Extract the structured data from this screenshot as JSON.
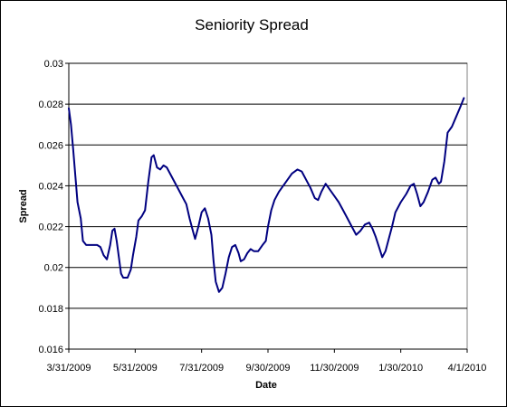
{
  "chart_data": {
    "type": "line",
    "title": "Seniority Spread",
    "xlabel": "Date",
    "ylabel": "Spread",
    "ylim": [
      0.016,
      0.03
    ],
    "y_ticks": [
      "0.016",
      "0.018",
      "0.02",
      "0.022",
      "0.024",
      "0.026",
      "0.028",
      "0.03"
    ],
    "x_ticks": [
      "3/31/2009",
      "5/31/2009",
      "7/31/2009",
      "9/30/2009",
      "11/30/2009",
      "1/30/2010",
      "4/1/2010"
    ],
    "x_range": [
      "3/31/2009",
      "4/1/2010"
    ],
    "grid": "horizontal major gridlines",
    "legend": "none",
    "series": [
      {
        "color": "#000080",
        "points": [
          [
            "3/31/2009",
            0.0278
          ],
          [
            "4/2/2009",
            0.027
          ],
          [
            "4/4/2009",
            0.0258
          ],
          [
            "4/6/2009",
            0.0245
          ],
          [
            "4/8/2009",
            0.0232
          ],
          [
            "4/11/2009",
            0.0224
          ],
          [
            "4/13/2009",
            0.0213
          ],
          [
            "4/16/2009",
            0.0211
          ],
          [
            "4/21/2009",
            0.0211
          ],
          [
            "4/26/2009",
            0.0211
          ],
          [
            "4/29/2009",
            0.021
          ],
          [
            "5/2/2009",
            0.0206
          ],
          [
            "5/5/2009",
            0.0204
          ],
          [
            "5/8/2009",
            0.0211
          ],
          [
            "5/10/2009",
            0.0218
          ],
          [
            "5/12/2009",
            0.0219
          ],
          [
            "5/14/2009",
            0.0213
          ],
          [
            "5/16/2009",
            0.0205
          ],
          [
            "5/18/2009",
            0.0197
          ],
          [
            "5/20/2009",
            0.0195
          ],
          [
            "5/24/2009",
            0.0195
          ],
          [
            "5/27/2009",
            0.0199
          ],
          [
            "5/29/2009",
            0.0206
          ],
          [
            "6/1/2009",
            0.0215
          ],
          [
            "6/3/2009",
            0.0223
          ],
          [
            "6/6/2009",
            0.0225
          ],
          [
            "6/9/2009",
            0.0228
          ],
          [
            "6/12/2009",
            0.0242
          ],
          [
            "6/15/2009",
            0.0254
          ],
          [
            "6/17/2009",
            0.0255
          ],
          [
            "6/20/2009",
            0.0249
          ],
          [
            "6/23/2009",
            0.0248
          ],
          [
            "6/26/2009",
            0.025
          ],
          [
            "6/29/2009",
            0.0249
          ],
          [
            "7/2/2009",
            0.0246
          ],
          [
            "7/8/2009",
            0.024
          ],
          [
            "7/14/2009",
            0.0234
          ],
          [
            "7/17/2009",
            0.0231
          ],
          [
            "7/20/2009",
            0.0224
          ],
          [
            "7/23/2009",
            0.0218
          ],
          [
            "7/25/2009",
            0.0214
          ],
          [
            "7/28/2009",
            0.022
          ],
          [
            "7/31/2009",
            0.0227
          ],
          [
            "8/3/2009",
            0.0229
          ],
          [
            "8/6/2009",
            0.0224
          ],
          [
            "8/9/2009",
            0.0216
          ],
          [
            "8/11/2009",
            0.0203
          ],
          [
            "8/13/2009",
            0.0193
          ],
          [
            "8/16/2009",
            0.0188
          ],
          [
            "8/19/2009",
            0.019
          ],
          [
            "8/22/2009",
            0.0197
          ],
          [
            "8/25/2009",
            0.0205
          ],
          [
            "8/28/2009",
            0.021
          ],
          [
            "8/31/2009",
            0.0211
          ],
          [
            "9/3/2009",
            0.0207
          ],
          [
            "9/5/2009",
            0.0203
          ],
          [
            "9/8/2009",
            0.0204
          ],
          [
            "9/11/2009",
            0.0207
          ],
          [
            "9/14/2009",
            0.0209
          ],
          [
            "9/17/2009",
            0.0208
          ],
          [
            "9/21/2009",
            0.0208
          ],
          [
            "9/25/2009",
            0.0211
          ],
          [
            "9/28/2009",
            0.0213
          ],
          [
            "9/30/2009",
            0.022
          ],
          [
            "10/3/2009",
            0.0228
          ],
          [
            "10/6/2009",
            0.0233
          ],
          [
            "10/10/2009",
            0.0237
          ],
          [
            "10/14/2009",
            0.024
          ],
          [
            "10/18/2009",
            0.0243
          ],
          [
            "10/22/2009",
            0.0246
          ],
          [
            "10/27/2009",
            0.0248
          ],
          [
            "10/31/2009",
            0.0247
          ],
          [
            "11/4/2009",
            0.0243
          ],
          [
            "11/8/2009",
            0.0239
          ],
          [
            "11/12/2009",
            0.0234
          ],
          [
            "11/15/2009",
            0.0233
          ],
          [
            "11/18/2009",
            0.0237
          ],
          [
            "11/22/2009",
            0.0241
          ],
          [
            "11/26/2009",
            0.0238
          ],
          [
            "11/30/2009",
            0.0235
          ],
          [
            "12/4/2009",
            0.0232
          ],
          [
            "12/8/2009",
            0.0228
          ],
          [
            "12/12/2009",
            0.0224
          ],
          [
            "12/16/2009",
            0.022
          ],
          [
            "12/20/2009",
            0.0216
          ],
          [
            "12/24/2009",
            0.0218
          ],
          [
            "12/28/2009",
            0.0221
          ],
          [
            "1/1/2010",
            0.0222
          ],
          [
            "1/4/2010",
            0.0219
          ],
          [
            "1/7/2010",
            0.0215
          ],
          [
            "1/10/2010",
            0.021
          ],
          [
            "1/13/2010",
            0.0205
          ],
          [
            "1/16/2010",
            0.0208
          ],
          [
            "1/19/2010",
            0.0214
          ],
          [
            "1/22/2010",
            0.022
          ],
          [
            "1/25/2010",
            0.0227
          ],
          [
            "1/30/2010",
            0.0232
          ],
          [
            "2/4/2010",
            0.0236
          ],
          [
            "2/8/2010",
            0.024
          ],
          [
            "2/11/2010",
            0.0241
          ],
          [
            "2/14/2010",
            0.0236
          ],
          [
            "2/17/2010",
            0.023
          ],
          [
            "2/20/2010",
            0.0232
          ],
          [
            "2/24/2010",
            0.0237
          ],
          [
            "2/28/2010",
            0.0243
          ],
          [
            "3/3/2010",
            0.0244
          ],
          [
            "3/6/2010",
            0.0241
          ],
          [
            "3/8/2010",
            0.0242
          ],
          [
            "3/11/2010",
            0.0252
          ],
          [
            "3/14/2010",
            0.0266
          ],
          [
            "3/18/2010",
            0.0269
          ],
          [
            "3/22/2010",
            0.0274
          ],
          [
            "3/26/2010",
            0.0279
          ],
          [
            "3/29/2010",
            0.0283
          ]
        ]
      }
    ]
  }
}
